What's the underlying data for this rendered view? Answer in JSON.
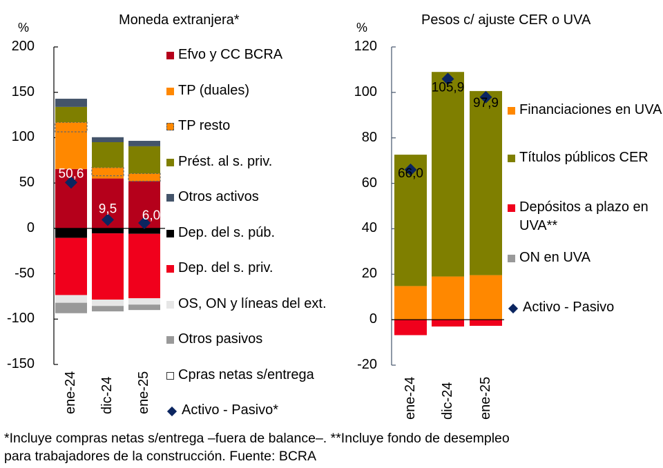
{
  "footnote": {
    "line1": "*Incluye compras netas s/entrega –fuera de balance–. **Incluye fondo de desempleo",
    "line2": "para trabajadores de la construcción. Fuente: BCRA"
  },
  "chart_data": [
    {
      "type": "bar",
      "stacked": true,
      "title": "Moneda extranjera*",
      "ylabel": "%",
      "xlabel": "",
      "ylim": [
        -150,
        200
      ],
      "yticks": [
        200,
        150,
        100,
        50,
        0,
        -50,
        -100,
        -150
      ],
      "categories": [
        "ene-24",
        "dic-24",
        "ene-25"
      ],
      "legend_position": "right",
      "series": [
        {
          "name": "Efvo y CC BCRA",
          "color": "#b5001b",
          "style": "solid",
          "values": [
            65.4,
            55.0,
            52.0
          ]
        },
        {
          "name": "TP (duales)",
          "color": "#ff8800",
          "style": "solid",
          "values": [
            41.0,
            3.0,
            0.0
          ]
        },
        {
          "name": "TP resto",
          "color": "#ff8800",
          "style": "dashed",
          "values": [
            10.5,
            9.0,
            8.5
          ]
        },
        {
          "name": "Prést. al s. priv.",
          "color": "#7f7f00",
          "style": "solid",
          "values": [
            17.0,
            28.0,
            30.0
          ]
        },
        {
          "name": "Otros activos",
          "color": "#44546a",
          "style": "solid",
          "values": [
            9.0,
            5.5,
            6.0
          ]
        },
        {
          "name": "Dep. del s. púb.",
          "color": "#000000",
          "style": "solid",
          "values": [
            -10.5,
            -5.5,
            -6.0
          ]
        },
        {
          "name": "Dep. del s. priv.",
          "color": "#f0001c",
          "style": "solid",
          "values": [
            -63.0,
            -73.0,
            -71.0
          ]
        },
        {
          "name": "OS, ON y líneas del ext.",
          "color": "#e6e6e6",
          "style": "solid",
          "values": [
            -8.5,
            -7.0,
            -7.0
          ]
        },
        {
          "name": "Otros pasivos",
          "color": "#999999",
          "style": "solid",
          "values": [
            -11.5,
            -6.0,
            -6.0
          ]
        },
        {
          "name": "Cpras netas s/entrega",
          "color": "#ffffff",
          "style": "outline",
          "values": [
            0,
            0,
            0
          ]
        }
      ],
      "markers": {
        "name": "Activo - Pasivo*",
        "color": "#0b2560",
        "values": [
          50.6,
          9.5,
          6.0
        ],
        "labels": [
          "50,6",
          "9,5",
          "6,0"
        ]
      }
    },
    {
      "type": "bar",
      "stacked": true,
      "title": "Pesos c/ ajuste  CER o UVA",
      "ylabel": "%",
      "xlabel": "",
      "ylim": [
        -20,
        120
      ],
      "yticks": [
        120,
        100,
        80,
        60,
        40,
        20,
        0,
        -20
      ],
      "categories": [
        "ene-24",
        "dic-24",
        "ene-25"
      ],
      "legend_position": "right",
      "series": [
        {
          "name": "Financiaciones en UVA",
          "color": "#ff8800",
          "values": [
            14.8,
            19.0,
            19.6
          ]
        },
        {
          "name": "Títulos públicos CER",
          "color": "#7f7f00",
          "values": [
            57.8,
            90.0,
            81.0
          ]
        },
        {
          "name": "Depósitos a plazo en UVA**",
          "color": "#f0001c",
          "values": [
            -6.8,
            -3.0,
            -2.7
          ]
        },
        {
          "name": "ON en UVA",
          "color": "#999999",
          "values": [
            0,
            0,
            0
          ]
        }
      ],
      "markers": {
        "name": "Activo - Pasivo",
        "color": "#0b2560",
        "values": [
          66.0,
          105.9,
          97.9
        ],
        "labels": [
          "66,0",
          "105,9",
          "97,9"
        ]
      }
    }
  ]
}
